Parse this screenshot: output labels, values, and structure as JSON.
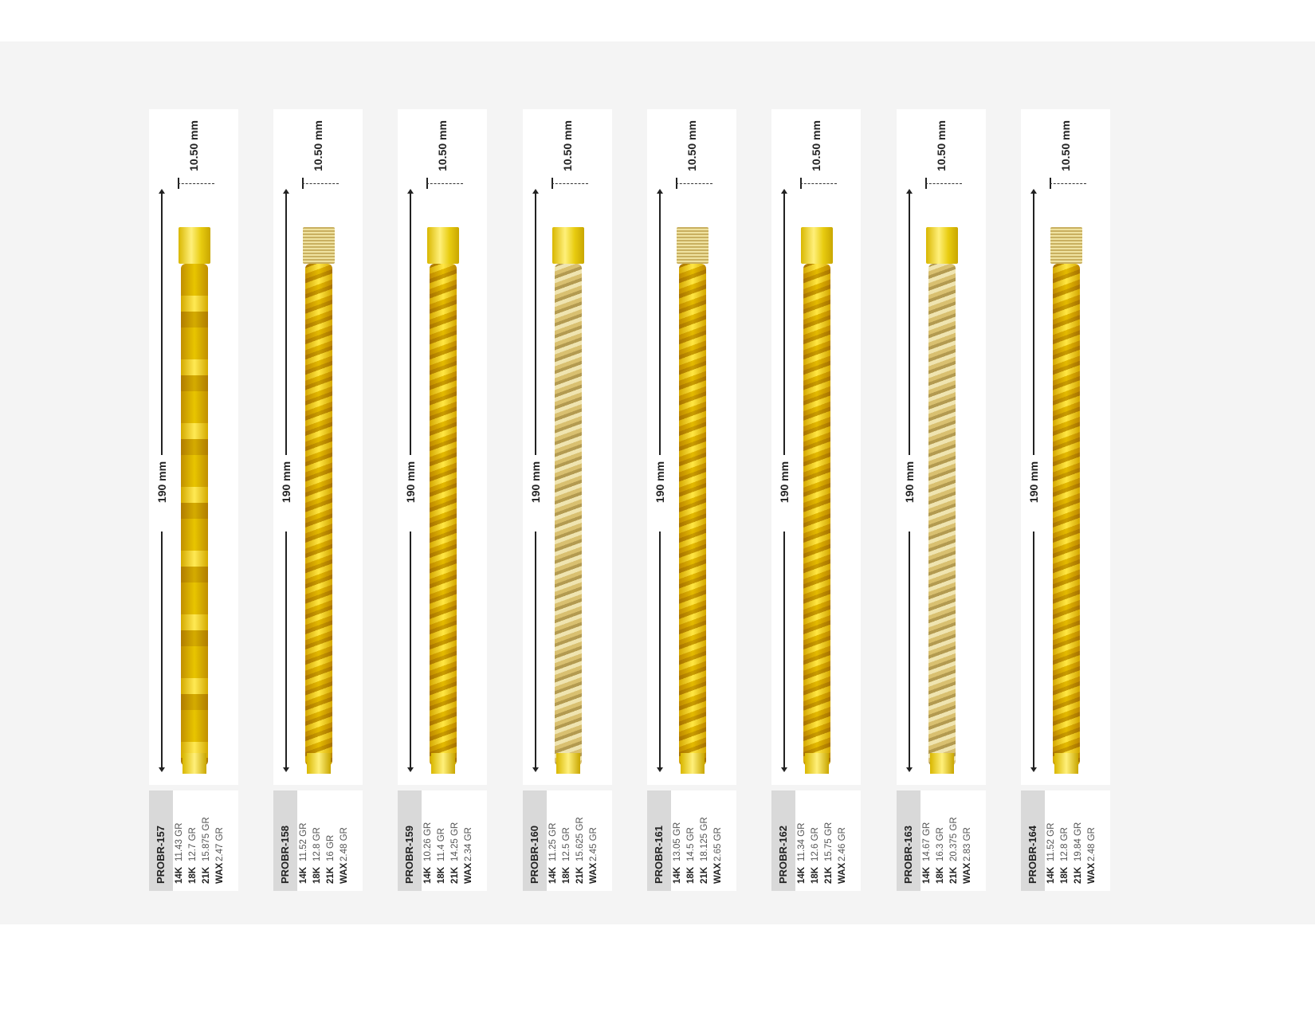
{
  "products": [
    {
      "code": "PROBR-157",
      "length": "190 mm",
      "width": "10.50 mm",
      "style": "plain",
      "weights": [
        [
          "14K",
          "11.43 GR"
        ],
        [
          "18K",
          "12.7 GR"
        ],
        [
          "21K",
          "15.875 GR"
        ],
        [
          "WAX",
          "2.47 GR"
        ]
      ]
    },
    {
      "code": "PROBR-158",
      "length": "190 mm",
      "width": "10.50 mm",
      "style": "mix",
      "weights": [
        [
          "14K",
          "11.52 GR"
        ],
        [
          "18K",
          "12.8 GR"
        ],
        [
          "21K",
          "16 GR"
        ],
        [
          "WAX",
          "2.48 GR"
        ]
      ]
    },
    {
      "code": "PROBR-159",
      "length": "190 mm",
      "width": "10.50 mm",
      "style": "gold",
      "weights": [
        [
          "14K",
          "10.26 GR"
        ],
        [
          "18K",
          "11.4 GR"
        ],
        [
          "21K",
          "14.25 GR"
        ],
        [
          "WAX",
          "2.34 GR"
        ]
      ]
    },
    {
      "code": "PROBR-160",
      "length": "190 mm",
      "width": "10.50 mm",
      "style": "pave",
      "weights": [
        [
          "14K",
          "11.25 GR"
        ],
        [
          "18K",
          "12.5 GR"
        ],
        [
          "21K",
          "15.625 GR"
        ],
        [
          "WAX",
          "2.45 GR"
        ]
      ]
    },
    {
      "code": "PROBR-161",
      "length": "190 mm",
      "width": "10.50 mm",
      "style": "mix",
      "weights": [
        [
          "14K",
          "13.05 GR"
        ],
        [
          "18K",
          "14.5 GR"
        ],
        [
          "21K",
          "18.125 GR"
        ],
        [
          "WAX",
          "2.65 GR"
        ]
      ]
    },
    {
      "code": "PROBR-162",
      "length": "190 mm",
      "width": "10.50 mm",
      "style": "gold",
      "weights": [
        [
          "14K",
          "11.34 GR"
        ],
        [
          "18K",
          "12.6 GR"
        ],
        [
          "21K",
          "15.75 GR"
        ],
        [
          "WAX",
          "2.46 GR"
        ]
      ]
    },
    {
      "code": "PROBR-163",
      "length": "190 mm",
      "width": "10.50 mm",
      "style": "pave",
      "weights": [
        [
          "14K",
          "14.67 GR"
        ],
        [
          "18K",
          "16.3 GR"
        ],
        [
          "21K",
          "20.375 GR"
        ],
        [
          "WAX",
          "2.83 GR"
        ]
      ]
    },
    {
      "code": "PROBR-164",
      "length": "190 mm",
      "width": "10.50 mm",
      "style": "mix",
      "weights": [
        [
          "14K",
          "11.52 GR"
        ],
        [
          "18K",
          "12.8 GR"
        ],
        [
          "21K",
          "19.84 GR"
        ],
        [
          "WAX",
          "2.48 GR"
        ]
      ]
    }
  ]
}
